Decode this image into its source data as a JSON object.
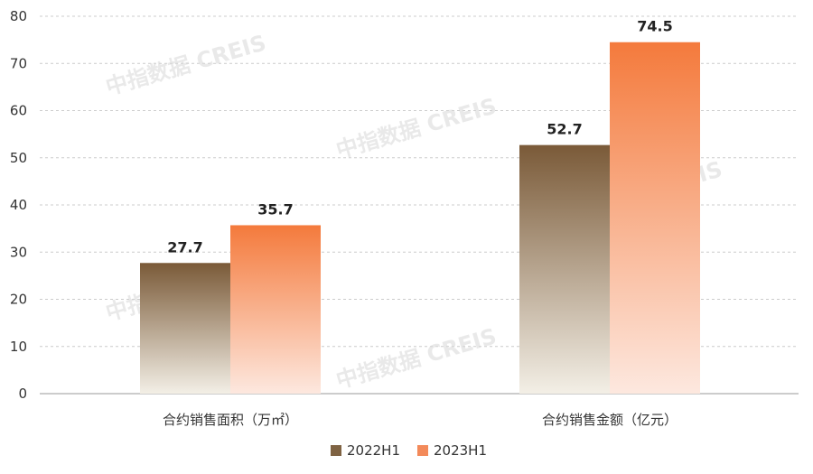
{
  "watermark": "中指数据 CREIS",
  "colors": {
    "series_2022_top": "#7a5a38",
    "series_2022_bottom": "#f3efe6",
    "series_2023_top": "#f47a3c",
    "series_2023_bottom": "#fde8df",
    "legend_2022": "#7f6343",
    "legend_2023": "#f38a5a",
    "grid": "#cccccc",
    "axis": "#999999"
  },
  "chart_data": {
    "type": "bar",
    "categories": [
      "合约销售面积（万㎡）",
      "合约销售金额（亿元）"
    ],
    "series": [
      {
        "name": "2022H1",
        "values": [
          27.7,
          52.7
        ]
      },
      {
        "name": "2023H1",
        "values": [
          35.7,
          74.5
        ]
      }
    ],
    "data_labels": [
      [
        "27.7",
        "52.7"
      ],
      [
        "35.7",
        "74.5"
      ]
    ],
    "ylim": [
      0,
      80
    ],
    "yticks": [
      "0",
      "10",
      "20",
      "30",
      "40",
      "50",
      "60",
      "70",
      "80"
    ],
    "grid": true,
    "legend_position": "bottom"
  }
}
